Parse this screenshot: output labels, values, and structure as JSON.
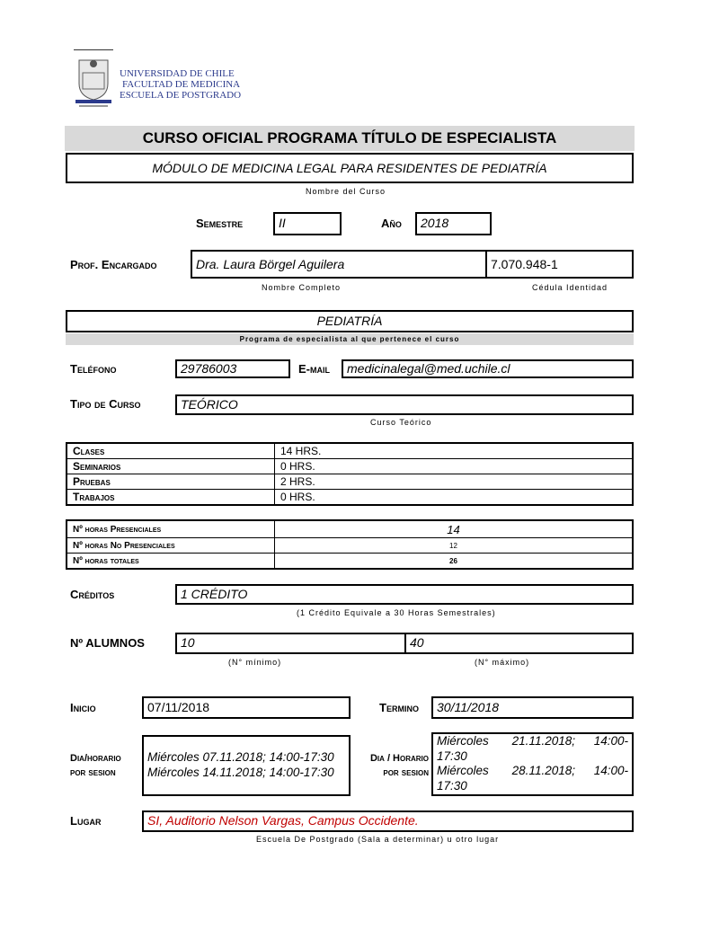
{
  "header": {
    "institution": [
      "UNIVERSIDAD DE CHILE",
      "FACULTAD DE MEDICINA",
      "ESCUELA DE POSTGRADO"
    ],
    "logo_text": "FACULTAD DE MEDICINA UNIVERSIDAD DE CHILE"
  },
  "title": "CURSO  OFICIAL PROGRAMA TÍTULO DE ESPECIALISTA",
  "course": {
    "name": "MÓDULO DE MEDICINA LEGAL PARA RESIDENTES DE PEDIATRÍA",
    "caption": "Nombre del Curso"
  },
  "semestre": {
    "label": "Semestre",
    "value": "II"
  },
  "anio": {
    "label": "Año",
    "value": "2018"
  },
  "prof": {
    "label": "Prof. Encargado",
    "name": "Dra. Laura Börgel Aguilera",
    "id": "7.070.948-1",
    "name_caption": "Nombre Completo",
    "id_caption": "Cédula Identidad"
  },
  "programa": {
    "value": "PEDIATRÍA",
    "caption": "Programa de especialista al que pertenece el curso"
  },
  "telefono": {
    "label": "Teléfono",
    "value": "29786003"
  },
  "email": {
    "label": "E-mail",
    "value": "medicinalegal@med.uchile.cl"
  },
  "tipo": {
    "label": "Tipo de Curso",
    "value": "TEÓRICO",
    "caption": "Curso Teórico"
  },
  "horas": [
    {
      "k": "Clases",
      "v": "14  HRS."
    },
    {
      "k": "Seminarios",
      "v": "0 HRS."
    },
    {
      "k": "Pruebas",
      "v": "2  HRS."
    },
    {
      "k": "Trabajos",
      "v": "0  HRS."
    }
  ],
  "totales": [
    {
      "k": "Nº horas Presenciales",
      "v": "14"
    },
    {
      "k": "Nº horas No Presenciales",
      "v": "12"
    },
    {
      "k": "Nº horas totales",
      "v": "26"
    }
  ],
  "creditos": {
    "label": "Créditos",
    "value": "1 CRÉDITO",
    "caption": "(1 Crédito Equivale a 30 Horas Semestrales)"
  },
  "alumnos": {
    "label": "Nº  ALUMNOS",
    "min": "10",
    "max": "40",
    "min_caption": "(N° mínimo)",
    "max_caption": "(N° máximo)"
  },
  "inicio": {
    "label": "Inicio",
    "value": "07/11/2018"
  },
  "termino": {
    "label": "Termino",
    "value": "30/11/2018"
  },
  "horario1": {
    "label1": "Dia/horario",
    "label2": "por sesion",
    "lines": [
      "Miércoles 07.11.2018; 14:00-17:30",
      "Miércoles 14.11.2018; 14:00-17:30"
    ]
  },
  "horario2": {
    "label1": "Dia / Horario",
    "label2": "por sesion",
    "lines": [
      "Miércoles     21.11.2018;    14:00-17:30",
      "Miércoles     28.11.2018;    14:00-17:30"
    ]
  },
  "lugar": {
    "label": "Lugar",
    "value": "SI, Auditorio Nelson Vargas, Campus Occidente.",
    "caption": "Escuela De Postgrado (Sala a determinar) u otro lugar",
    "color": "#c00000"
  }
}
